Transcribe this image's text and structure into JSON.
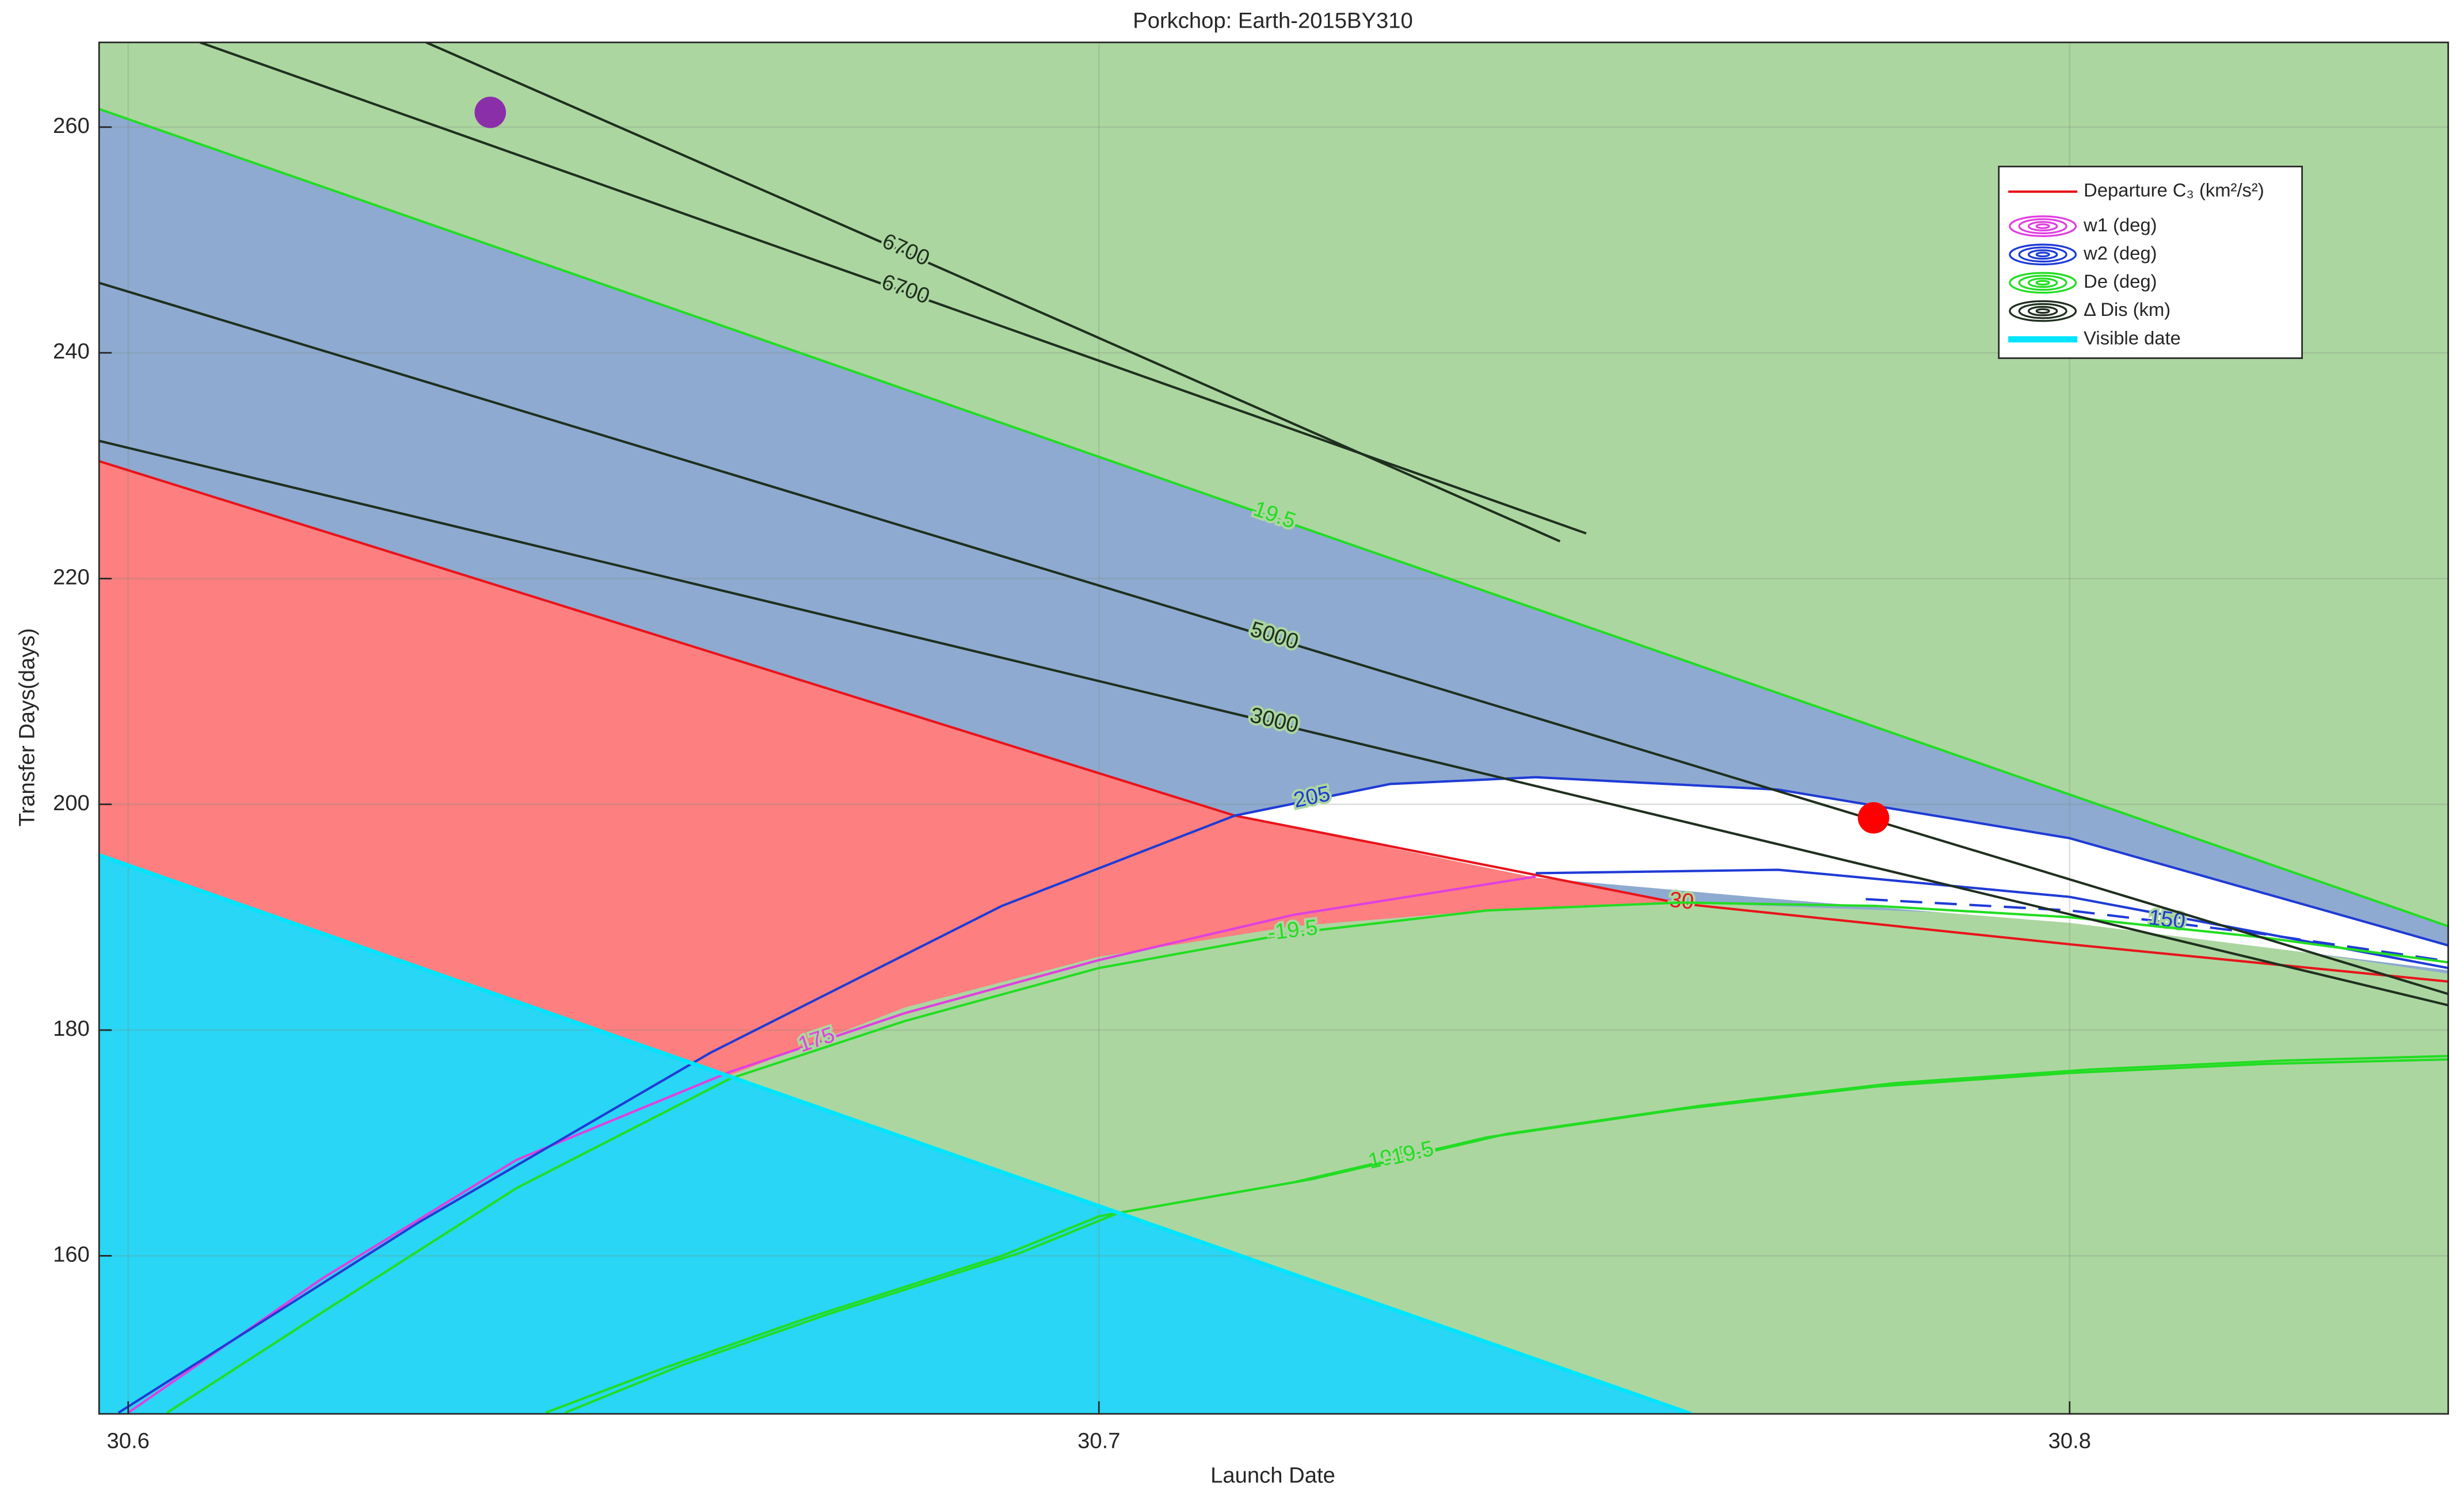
{
  "chart_data": {
    "type": "contour",
    "title": "Porkchop: Earth-2015BY310",
    "x_label": "Launch Date",
    "y_label": "Transfer Days(days)",
    "xlim": [
      30.597,
      30.839
    ],
    "ylim": [
      146,
      267.5
    ],
    "xticks": [
      30.6,
      30.7,
      30.8
    ],
    "yticks": [
      160,
      180,
      200,
      220,
      240,
      260
    ],
    "grid": true,
    "background": "#acd6a0",
    "legend_position": "upper right",
    "regions": [
      {
        "color": "#8eaad0",
        "x": [
          30.597,
          30.839,
          30.839,
          30.8,
          30.76,
          30.74,
          30.72,
          30.7,
          30.68,
          30.662,
          30.597
        ],
        "y": [
          261.6,
          189.2,
          185,
          190,
          191.3,
          190.6,
          189.2,
          186.5,
          182,
          176,
          195.5
        ]
      },
      {
        "color": "#fd7f7f",
        "x": [
          30.597,
          30.714,
          30.76,
          30.74,
          30.72,
          30.7,
          30.68,
          30.662,
          30.597
        ],
        "y": [
          230.4,
          199,
          191.2,
          190.6,
          189.2,
          186.5,
          182,
          176,
          195.5
        ]
      },
      {
        "color": "#ffffff",
        "x": [
          30.714,
          30.73,
          30.745,
          30.77,
          30.8,
          30.839,
          30.839,
          30.8,
          30.77,
          30.745
        ],
        "y": [
          199,
          201.8,
          202.4,
          201.3,
          197,
          187.5,
          185.3,
          189.5,
          191.6,
          193.5
        ]
      },
      {
        "color": "#29d6f5",
        "x": [
          30.597,
          30.761,
          30.597
        ],
        "y": [
          195.5,
          146,
          146
        ]
      }
    ],
    "series": [
      {
        "name": "Departure C₃ (km²/s²)",
        "color": "#e8141b",
        "legend_icon": "line",
        "contours": [
          {
            "level": 30,
            "x": [
              30.597,
              30.714,
              30.76,
              30.8,
              30.839
            ],
            "y": [
              230.4,
              199,
              191.2,
              187.6,
              184.3
            ]
          }
        ]
      },
      {
        "name": "w1 (deg)",
        "color": "#e040e0",
        "legend_icon": "contour",
        "contours": [
          {
            "level": 175,
            "x": [
              30.6,
              30.62,
              30.64,
              30.662,
              30.68,
              30.7,
              30.72,
              30.745
            ],
            "y": [
              146.1,
              158,
              168.5,
              176.3,
              181.5,
              186.2,
              190.2,
              193.6
            ]
          }
        ]
      },
      {
        "name": "w2 (deg)",
        "color": "#1f3bd6",
        "legend_icon": "contour",
        "contours": [
          {
            "level": 205,
            "x": [
              30.599,
              30.63,
              30.66,
              30.69,
              30.714,
              30.73,
              30.745,
              30.77,
              30.8,
              30.839
            ],
            "y": [
              146.1,
              163,
              178,
              191,
              199,
              201.8,
              202.4,
              201.3,
              197,
              187.5
            ]
          },
          {
            "x": [
              30.745,
              30.77,
              30.8,
              30.839
            ],
            "y": [
              193.9,
              194.2,
              191.8,
              185.5
            ]
          },
          {
            "level": 150,
            "dashed": true,
            "x": [
              30.779,
              30.8,
              30.82,
              30.839
            ],
            "y": [
              191.6,
              190.6,
              188.5,
              186.1
            ]
          }
        ]
      },
      {
        "name": "De (deg)",
        "color": "#22dd22",
        "legend_icon": "contour",
        "contours": [
          {
            "level": 19.5,
            "x": [
              30.597,
              30.839
            ],
            "y": [
              261.6,
              189.2
            ]
          },
          {
            "level": -19.5,
            "x": [
              30.604,
              30.62,
              30.64,
              30.662,
              30.68,
              30.7,
              30.72,
              30.74,
              30.76,
              30.78,
              30.8,
              30.82,
              30.839
            ],
            "y": [
              146.1,
              155,
              166,
              175.7,
              180.8,
              185.5,
              188.6,
              190.6,
              191.3,
              191,
              190,
              188.2,
              186
            ]
          },
          {
            "level": 19.5,
            "x": [
              30.643,
              30.655,
              30.67,
              30.69,
              30.7,
              30.72,
              30.74,
              30.76,
              30.78,
              30.8,
              30.82,
              30.839
            ],
            "y": [
              146.1,
              150,
              154.5,
              160,
              163.5,
              166.5,
              170.5,
              173,
              175,
              176.2,
              177,
              177.4
            ]
          },
          {
            "level": -19.5,
            "x": [
              30.645,
              30.657,
              30.672,
              30.692,
              30.702,
              30.722,
              30.742,
              30.762,
              30.782,
              30.802,
              30.822,
              30.839
            ],
            "y": [
              146.1,
              150.3,
              154.8,
              160.3,
              163.8,
              166.8,
              170.8,
              173.3,
              175.3,
              176.5,
              177.3,
              177.7
            ]
          }
        ]
      },
      {
        "name": "Δ Dis (km)",
        "color": "#1f2f1f",
        "legend_icon": "contour",
        "contours": [
          {
            "level": 6700,
            "x": [
              30.6074,
              30.68,
              30.7502
            ],
            "y": [
              267.5,
              245.4,
              224
            ]
          },
          {
            "level": 6700,
            "x": [
              30.6307,
              30.68,
              30.7475
            ],
            "y": [
              267.5,
              248.9,
              223.3
            ]
          },
          {
            "level": 5000,
            "x": [
              30.597,
              30.839
            ],
            "y": [
              246.2,
              183.2
            ]
          },
          {
            "level": 3000,
            "x": [
              30.597,
              30.839
            ],
            "y": [
              232.2,
              182.2
            ]
          }
        ]
      },
      {
        "name": "Visible date",
        "color": "#00e5ff",
        "legend_icon": "thick",
        "contours": [
          {
            "x": [
              30.597,
              30.761
            ],
            "y": [
              195.5,
              146
            ]
          }
        ]
      }
    ],
    "points": [
      {
        "color": "#8b2fa8",
        "x": 30.6373,
        "y": 261.3
      },
      {
        "color": "#ff0000",
        "x": 30.7798,
        "y": 198.8
      }
    ]
  }
}
